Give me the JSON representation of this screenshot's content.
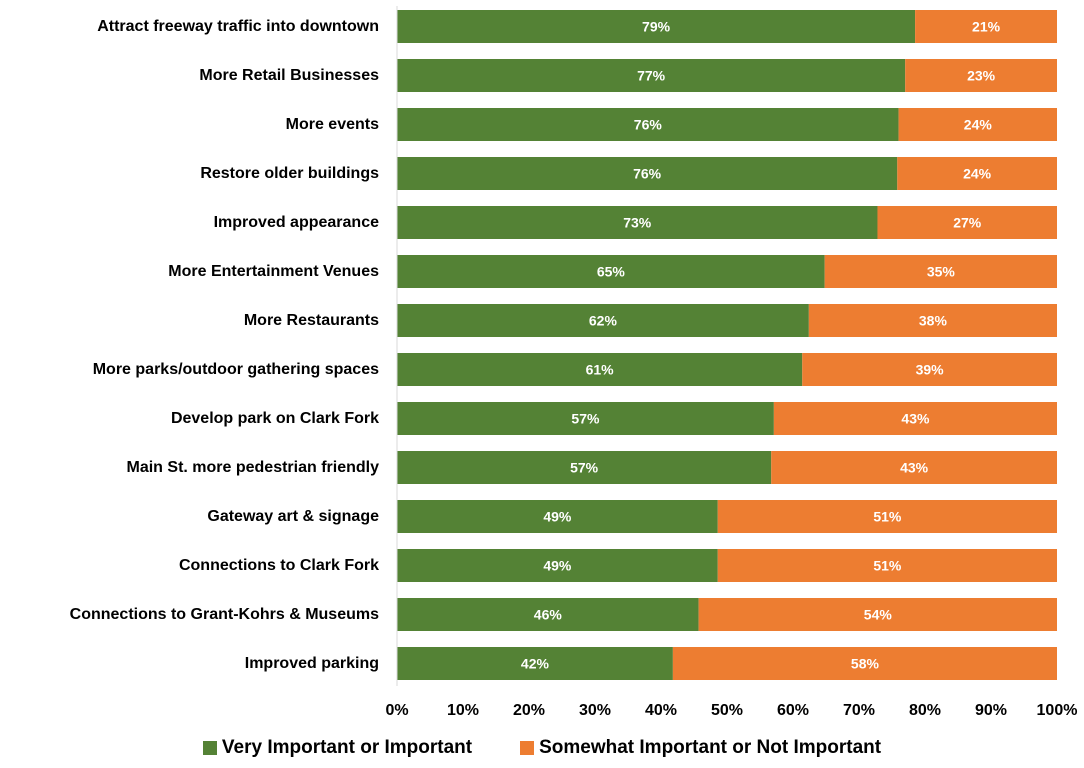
{
  "chart_data": {
    "type": "bar",
    "orientation": "horizontal",
    "stacked": true,
    "categories": [
      "Attract freeway traffic into downtown",
      "More Retail Businesses",
      "More events",
      "Restore older buildings",
      "Improved appearance",
      "More Entertainment Venues",
      "More Restaurants",
      "More parks/outdoor gathering spaces",
      "Develop park on Clark Fork ",
      "Main St. more pedestrian friendly",
      "Gateway art & signage",
      "Connections to Clark Fork ",
      "Connections to Grant-Kohrs & Museums",
      "Improved parking"
    ],
    "series": [
      {
        "name": "Very Important or Important",
        "color": "#548235",
        "values": [
          78.5,
          77,
          76,
          75.8,
          72.8,
          64.8,
          62.4,
          61.4,
          57.1,
          56.7,
          48.6,
          48.6,
          45.7,
          41.8
        ],
        "labels": [
          "79%",
          "77%",
          "76%",
          "76%",
          "73%",
          "65%",
          "62%",
          "61%",
          "57%",
          "57%",
          "49%",
          "49%",
          "46%",
          "42%"
        ]
      },
      {
        "name": "Somewhat Important or Not Important",
        "color": "#ED7D31",
        "values": [
          21.5,
          23,
          24,
          24.2,
          27.2,
          35.2,
          37.6,
          38.6,
          42.9,
          43.3,
          51.4,
          51.4,
          54.3,
          58.2
        ],
        "labels": [
          "21%",
          "23%",
          "24%",
          "24%",
          "27%",
          "35%",
          "38%",
          "39%",
          "43%",
          "43%",
          "51%",
          "51%",
          "54%",
          "58%"
        ]
      }
    ],
    "xlim": [
      0,
      100
    ],
    "x_ticks": [
      "0%",
      "10%",
      "20%",
      "30%",
      "40%",
      "50%",
      "60%",
      "70%",
      "80%",
      "90%",
      "100%"
    ],
    "grid": false,
    "legend_position": "bottom"
  }
}
